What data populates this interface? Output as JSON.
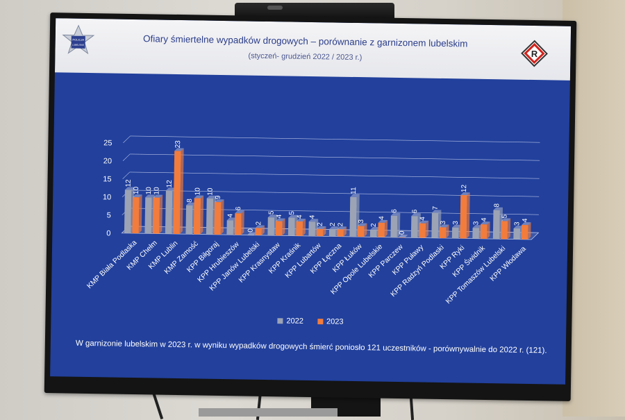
{
  "slide": {
    "title": "Ofiary śmiertelne wypadków drogowych – porównanie z garnizonem lubelskim",
    "subtitle": "(styczeń- grudzień 2022 / 2023 r.)",
    "footer": "W garnizonie lubelskim w 2023 r. w wyniku wypadków drogowych śmierć poniosło 121 uczestników - porównywalnie do 2022 r. (121).",
    "logo_text": [
      "POLICJA",
      "LUBELSKIE"
    ],
    "sign_letter": "R"
  },
  "colors": {
    "series_2022": "#9ba3b5",
    "series_2023": "#f27c3c",
    "background": "#22409c",
    "grid": "#b9c3e6"
  },
  "chart_data": {
    "type": "bar",
    "categories": [
      "KMP Biała Podlaska",
      "KMP Chełm",
      "KMP Lublin",
      "KMP Zamość",
      "KPP Biłgoraj",
      "KPP Hrubieszów",
      "KPP Janów Lubelski",
      "KPP Krasnystaw",
      "KPP Kraśnik",
      "KPP Lubartów",
      "KPP Łęczna",
      "KPP Łuków",
      "KPP Opole Lubelskie",
      "KPP Parczew",
      "KPP Puławy",
      "KPP Radzyń Podlaski",
      "KPP Ryki",
      "KPP Świdnik",
      "KPP Tomaszów Lubelski",
      "KPP Włodawa"
    ],
    "series": [
      {
        "name": "2022",
        "values": [
          12,
          10,
          12,
          8,
          10,
          4,
          0,
          5,
          5,
          4,
          2,
          11,
          2,
          6,
          6,
          7,
          3,
          3,
          8,
          3
        ]
      },
      {
        "name": "2023",
        "values": [
          10,
          10,
          23,
          10,
          9,
          6,
          2,
          4,
          4,
          2,
          2,
          3,
          4,
          0,
          4,
          3,
          12,
          4,
          5,
          4
        ]
      }
    ],
    "yticks": [
      "0",
      "5",
      "10",
      "15",
      "20",
      "25"
    ],
    "ylim": [
      0,
      25
    ],
    "grid": true,
    "legend_position": "bottom"
  }
}
